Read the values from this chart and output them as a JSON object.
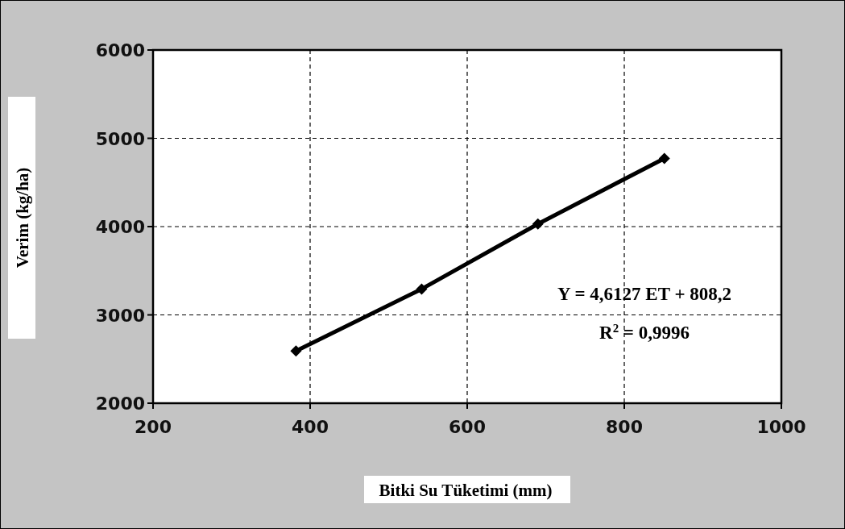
{
  "chart_data": {
    "type": "line",
    "xlabel": "Bitki Su Tüketimi  (mm)",
    "ylabel": "Verim (kg/ha)",
    "x": [
      382,
      542,
      690,
      851
    ],
    "series": [
      {
        "color": "#000000",
        "values": [
          2591,
          3293,
          4030,
          4772
        ]
      }
    ],
    "xlim": [
      200,
      1000
    ],
    "xticks": [
      200,
      400,
      600,
      800,
      1000
    ],
    "ylim": [
      2000,
      6000
    ],
    "yticks": [
      2000,
      3000,
      4000,
      5000,
      6000
    ],
    "grid": true,
    "marker": "diamond",
    "line_style": "solid",
    "annotations": [
      "Y = 4,6127 ET + 808,2",
      "R$^{2}$ = 0,9996"
    ]
  }
}
